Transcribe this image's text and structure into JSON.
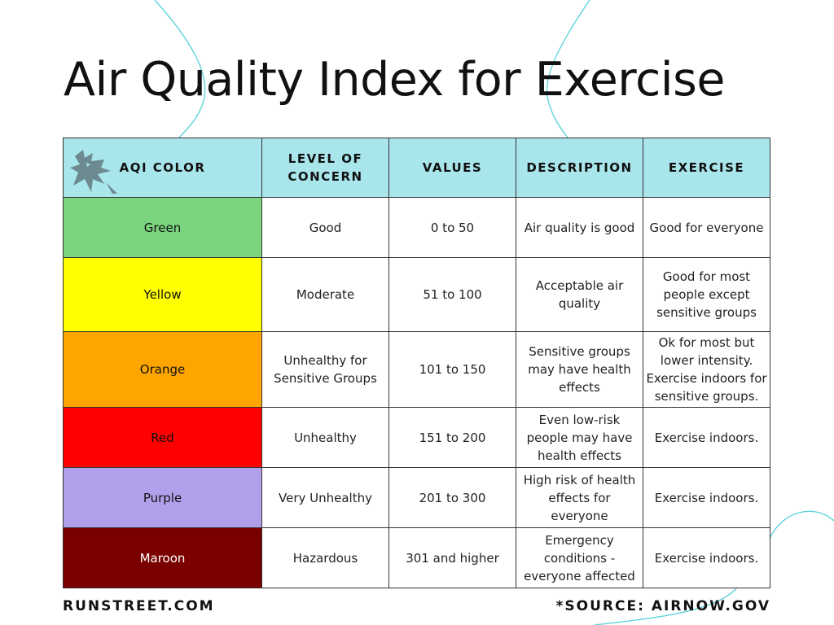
{
  "title": "Air Quality Index for Exercise",
  "columns": [
    "AQI COLOR",
    "LEVEL OF CONCERN",
    "VALUES",
    "DESCRIPTION",
    "EXERCISE"
  ],
  "rows": [
    {
      "color_name": "Green",
      "color_hex": "#7bd47f",
      "text_color": "#111111",
      "level": "Good",
      "values": "0 to 50",
      "description": "Air quality is good",
      "exercise": "Good for everyone"
    },
    {
      "color_name": "Yellow",
      "color_hex": "#ffff00",
      "text_color": "#111111",
      "level": "Moderate",
      "values": "51 to 100",
      "description": "Acceptable air quality",
      "exercise": "Good for most people except sensitive groups"
    },
    {
      "color_name": "Orange",
      "color_hex": "#ffa500",
      "text_color": "#111111",
      "level": "Unhealthy for Sensitive Groups",
      "values": "101 to 150",
      "description": "Sensitive groups may have health effects",
      "exercise": "Ok for most but lower intensity. Exercise indoors for sensitive groups."
    },
    {
      "color_name": "Red",
      "color_hex": "#ff0000",
      "text_color": "#111111",
      "level": "Unhealthy",
      "values": "151 to 200",
      "description": "Even low-risk people may have health effects",
      "exercise": "Exercise indoors."
    },
    {
      "color_name": "Purple",
      "color_hex": "#b0a0ec",
      "text_color": "#111111",
      "level": "Very Unhealthy",
      "values": "201 to 300",
      "description": "High risk of health effects for everyone",
      "exercise": "Exercise indoors."
    },
    {
      "color_name": "Maroon",
      "color_hex": "#7a0000",
      "text_color": "#ffffff",
      "level": "Hazardous",
      "values": "301 and higher",
      "description": "Emergency conditions - everyone affected",
      "exercise": "Exercise indoors."
    }
  ],
  "footer": {
    "site": "RUNSTREET.COM",
    "source": "*SOURCE: AIRNOW.GOV"
  },
  "colors": {
    "header_bg": "#a8e6ec",
    "deco_line": "#5fd3dc",
    "logo": "#6d8a90"
  }
}
